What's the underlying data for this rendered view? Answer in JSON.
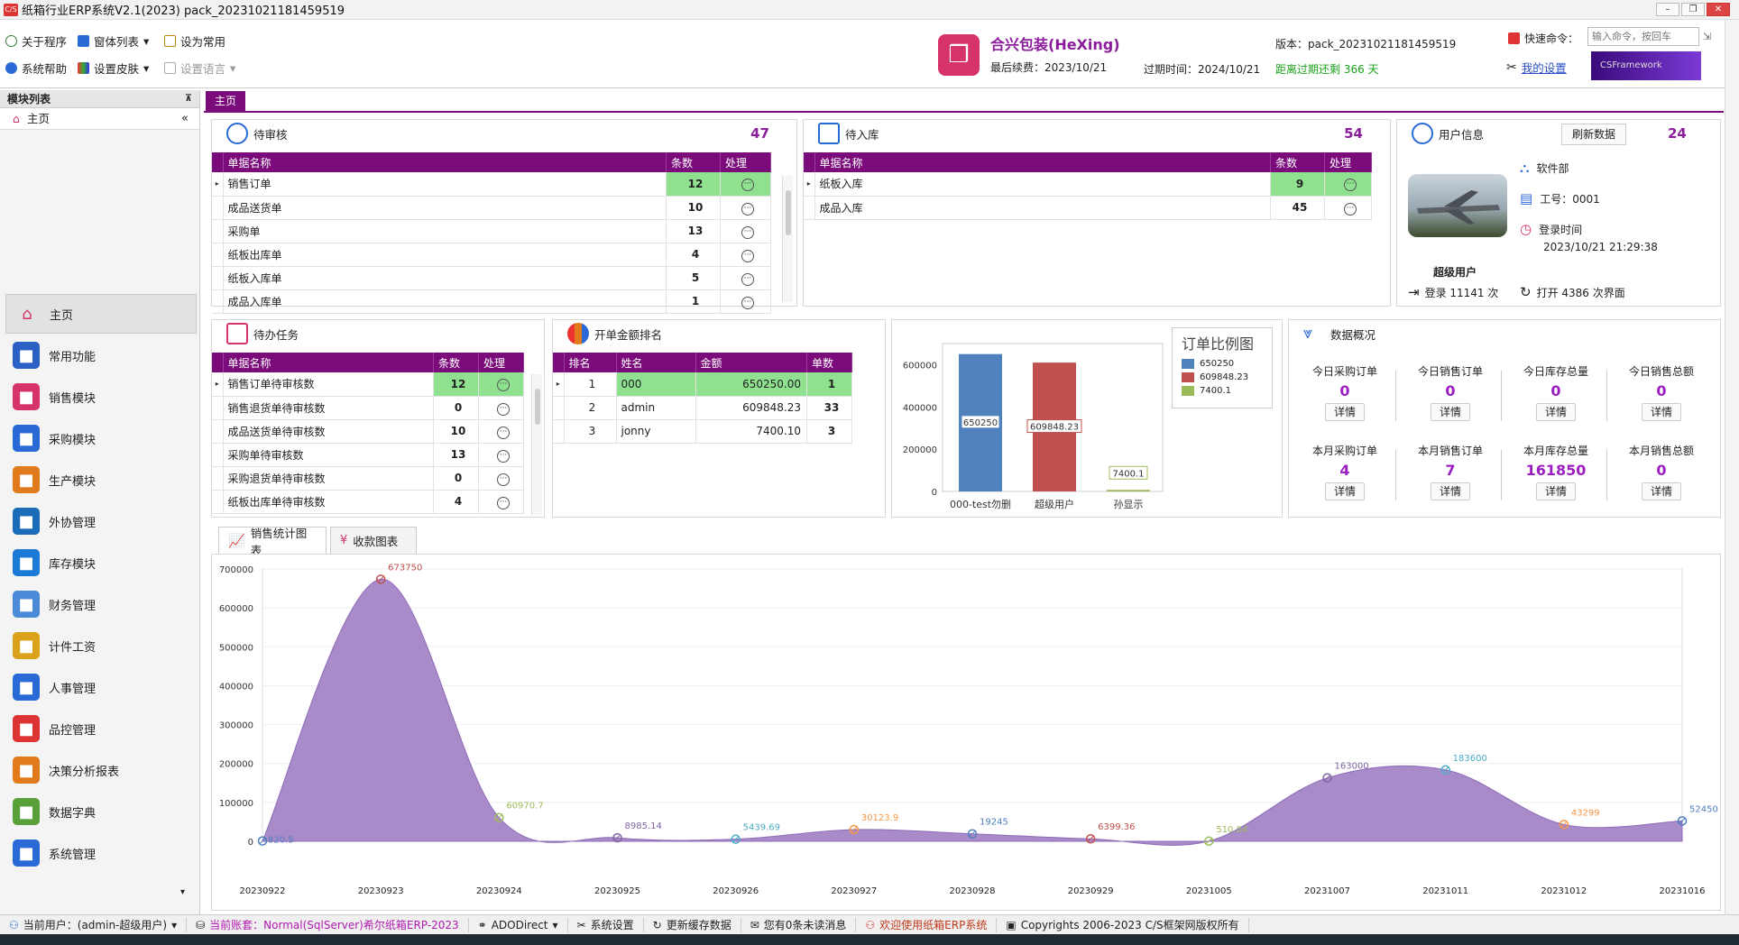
{
  "window": {
    "title": "纸箱行业ERP系统V2.1(2023) pack_20231021181459519",
    "logo_text": "C/S"
  },
  "toolbar": {
    "about": "关于程序",
    "window_list": "窗体列表",
    "set_common": "设为常用",
    "help": "系统帮助",
    "skin": "设置皮肤",
    "language": "设置语言"
  },
  "company": {
    "name": "合兴包装(HeXing)",
    "renew_label": "最后续费：2023/10/21",
    "expire_label": "过期时间：2024/10/21",
    "days_left": "距离过期还剩 366 天",
    "version": "版本：pack_20231021181459519",
    "quick_cmd_label": "快速命令：",
    "quick_cmd_placeholder": "输入命令，按回车",
    "my_settings": "我的设置",
    "framework_logo": "CSFramework"
  },
  "sidebar": {
    "header": "模块列表",
    "home": "主页",
    "items": [
      {
        "label": "主页",
        "icon": "home-icon",
        "color": "#e0e0e0"
      },
      {
        "label": "常用功能",
        "icon": "star-icon",
        "color": "#2a5fc4"
      },
      {
        "label": "销售模块",
        "icon": "sales-icon",
        "color": "#d6336c"
      },
      {
        "label": "采购模块",
        "icon": "purchase-icon",
        "color": "#2a6ad6"
      },
      {
        "label": "生产模块",
        "icon": "production-icon",
        "color": "#e07a1a"
      },
      {
        "label": "外协管理",
        "icon": "outsource-icon",
        "color": "#1a6bb8"
      },
      {
        "label": "库存模块",
        "icon": "warehouse-icon",
        "color": "#1a7ad6"
      },
      {
        "label": "财务管理",
        "icon": "finance-icon",
        "color": "#4a8ad6"
      },
      {
        "label": "计件工资",
        "icon": "wage-icon",
        "color": "#d9a21a"
      },
      {
        "label": "人事管理",
        "icon": "person-icon",
        "color": "#2a6ad6"
      },
      {
        "label": "品控管理",
        "icon": "quality-icon",
        "color": "#d33"
      },
      {
        "label": "决策分析报表",
        "icon": "report-icon",
        "color": "#e07a1a"
      },
      {
        "label": "数据字典",
        "icon": "dictionary-icon",
        "color": "#5aa03a"
      },
      {
        "label": "系统管理",
        "icon": "windows-icon",
        "color": "#2a6ad6"
      }
    ]
  },
  "main_tab": "主页",
  "pending_review": {
    "title": "待审核",
    "count": "47",
    "headers": [
      "单据名称",
      "条数",
      "处理"
    ],
    "rows": [
      [
        "销售订单",
        "12"
      ],
      [
        "成品送货单",
        "10"
      ],
      [
        "采购单",
        "13"
      ],
      [
        "纸板出库单",
        "4"
      ],
      [
        "纸板入库单",
        "5"
      ],
      [
        "成品入库单",
        "1"
      ]
    ]
  },
  "pending_stock": {
    "title": "待入库",
    "count": "54",
    "headers": [
      "单据名称",
      "条数",
      "处理"
    ],
    "rows": [
      [
        "纸板入库",
        "9"
      ],
      [
        "成品入库",
        "45"
      ]
    ]
  },
  "user_info": {
    "title": "用户信息",
    "refresh": "刷新数据",
    "count": "24",
    "dept": "软件部",
    "job_no": "工号：0001",
    "login_time_label": "登录时间",
    "login_time": "2023/10/21 21:29:38",
    "role": "超级用户",
    "login_count": "登录 11141 次",
    "open_count": "打开 4386 次界面"
  },
  "todo": {
    "title": "待办任务",
    "headers": [
      "单据名称",
      "条数",
      "处理"
    ],
    "rows": [
      [
        "销售订单待审核数",
        "12"
      ],
      [
        "销售退货单待审核数",
        "0"
      ],
      [
        "成品送货单待审核数",
        "10"
      ],
      [
        "采购单待审核数",
        "13"
      ],
      [
        "采购退货单待审核数",
        "0"
      ],
      [
        "纸板出库单待审核数",
        "4"
      ]
    ]
  },
  "ranking": {
    "title": "开单金额排名",
    "headers": [
      "排名",
      "姓名",
      "金额",
      "单数"
    ],
    "rows": [
      [
        "1",
        "000",
        "650250.00",
        "1"
      ],
      [
        "2",
        "admin",
        "609848.23",
        "33"
      ],
      [
        "3",
        "jonny",
        "7400.10",
        "3"
      ]
    ]
  },
  "order_ratio": {
    "legend_title": "订单比例图",
    "legend": [
      "650250",
      "609848.23",
      "7400.1"
    ]
  },
  "overview": {
    "title": "数据概况",
    "detail": "详情",
    "stats": [
      {
        "label": "今日采购订单",
        "value": "0"
      },
      {
        "label": "今日销售订单",
        "value": "0"
      },
      {
        "label": "今日库存总量",
        "value": "0"
      },
      {
        "label": "今日销售总额",
        "value": "0"
      },
      {
        "label": "本月采购订单",
        "value": "4"
      },
      {
        "label": "本月销售订单",
        "value": "7"
      },
      {
        "label": "本月库存总量",
        "value": "161850"
      },
      {
        "label": "本月销售总额",
        "value": "0"
      }
    ]
  },
  "chart_tabs": [
    "销售统计图表",
    "收款图表"
  ],
  "chart_data": [
    {
      "type": "bar",
      "categories": [
        "000-test勿删",
        "超级用户",
        "孙显示"
      ],
      "values": [
        650250,
        609848.23,
        7400.1
      ],
      "data_labels": [
        "650250",
        "609848.23",
        "7400.1"
      ],
      "colors": [
        "#4f81bd",
        "#c0504d",
        "#9bbb59"
      ],
      "ylim": [
        0,
        700000
      ],
      "yticks": [
        "0",
        "200000",
        "400000",
        "600000"
      ],
      "legend_placement": "right"
    },
    {
      "type": "area",
      "categories": [
        "20230922",
        "20230923",
        "20230924",
        "20230925",
        "20230926",
        "20230927",
        "20230928",
        "20230929",
        "20231005",
        "20231007",
        "20231011",
        "20231012",
        "20231016"
      ],
      "values": [
        820.5,
        673750,
        60970.7,
        8985.14,
        5439.69,
        30123.9,
        19245,
        6399.36,
        510.04,
        163000,
        183600,
        43299,
        52450
      ],
      "data_labels": [
        "820.5",
        "673750",
        "60970.7",
        "8985.14",
        "5439.69",
        "30123.9",
        "19245",
        "6399.36",
        "510.04",
        "163000",
        "183600",
        "43299",
        "52450"
      ],
      "point_colors": [
        "#4f81bd",
        "#c0504d",
        "#9bbb59",
        "#8064a2",
        "#4bacc6",
        "#f79646",
        "#4f81bd",
        "#c0504d",
        "#9bbb59",
        "#8064a2",
        "#4bacc6",
        "#f79646",
        "#4f81bd"
      ],
      "fill_color": "#a98bc9",
      "ylim": [
        0,
        700000
      ],
      "yticks": [
        "0",
        "100000",
        "200000",
        "300000",
        "400000",
        "500000",
        "600000",
        "700000"
      ],
      "grid": true
    }
  ],
  "statusbar": {
    "user": "当前用户：(admin-超级用户)",
    "account": "当前账套：Normal(SqlServer)希尔纸箱ERP-2023",
    "ado": "ADODirect",
    "settings": "系统设置",
    "cache": "更新缓存数据",
    "messages": "您有0条未读消息",
    "welcome": "欢迎使用纸箱ERP系统",
    "copyright": "Copyrights 2006-2023 C/S框架网版权所有"
  }
}
